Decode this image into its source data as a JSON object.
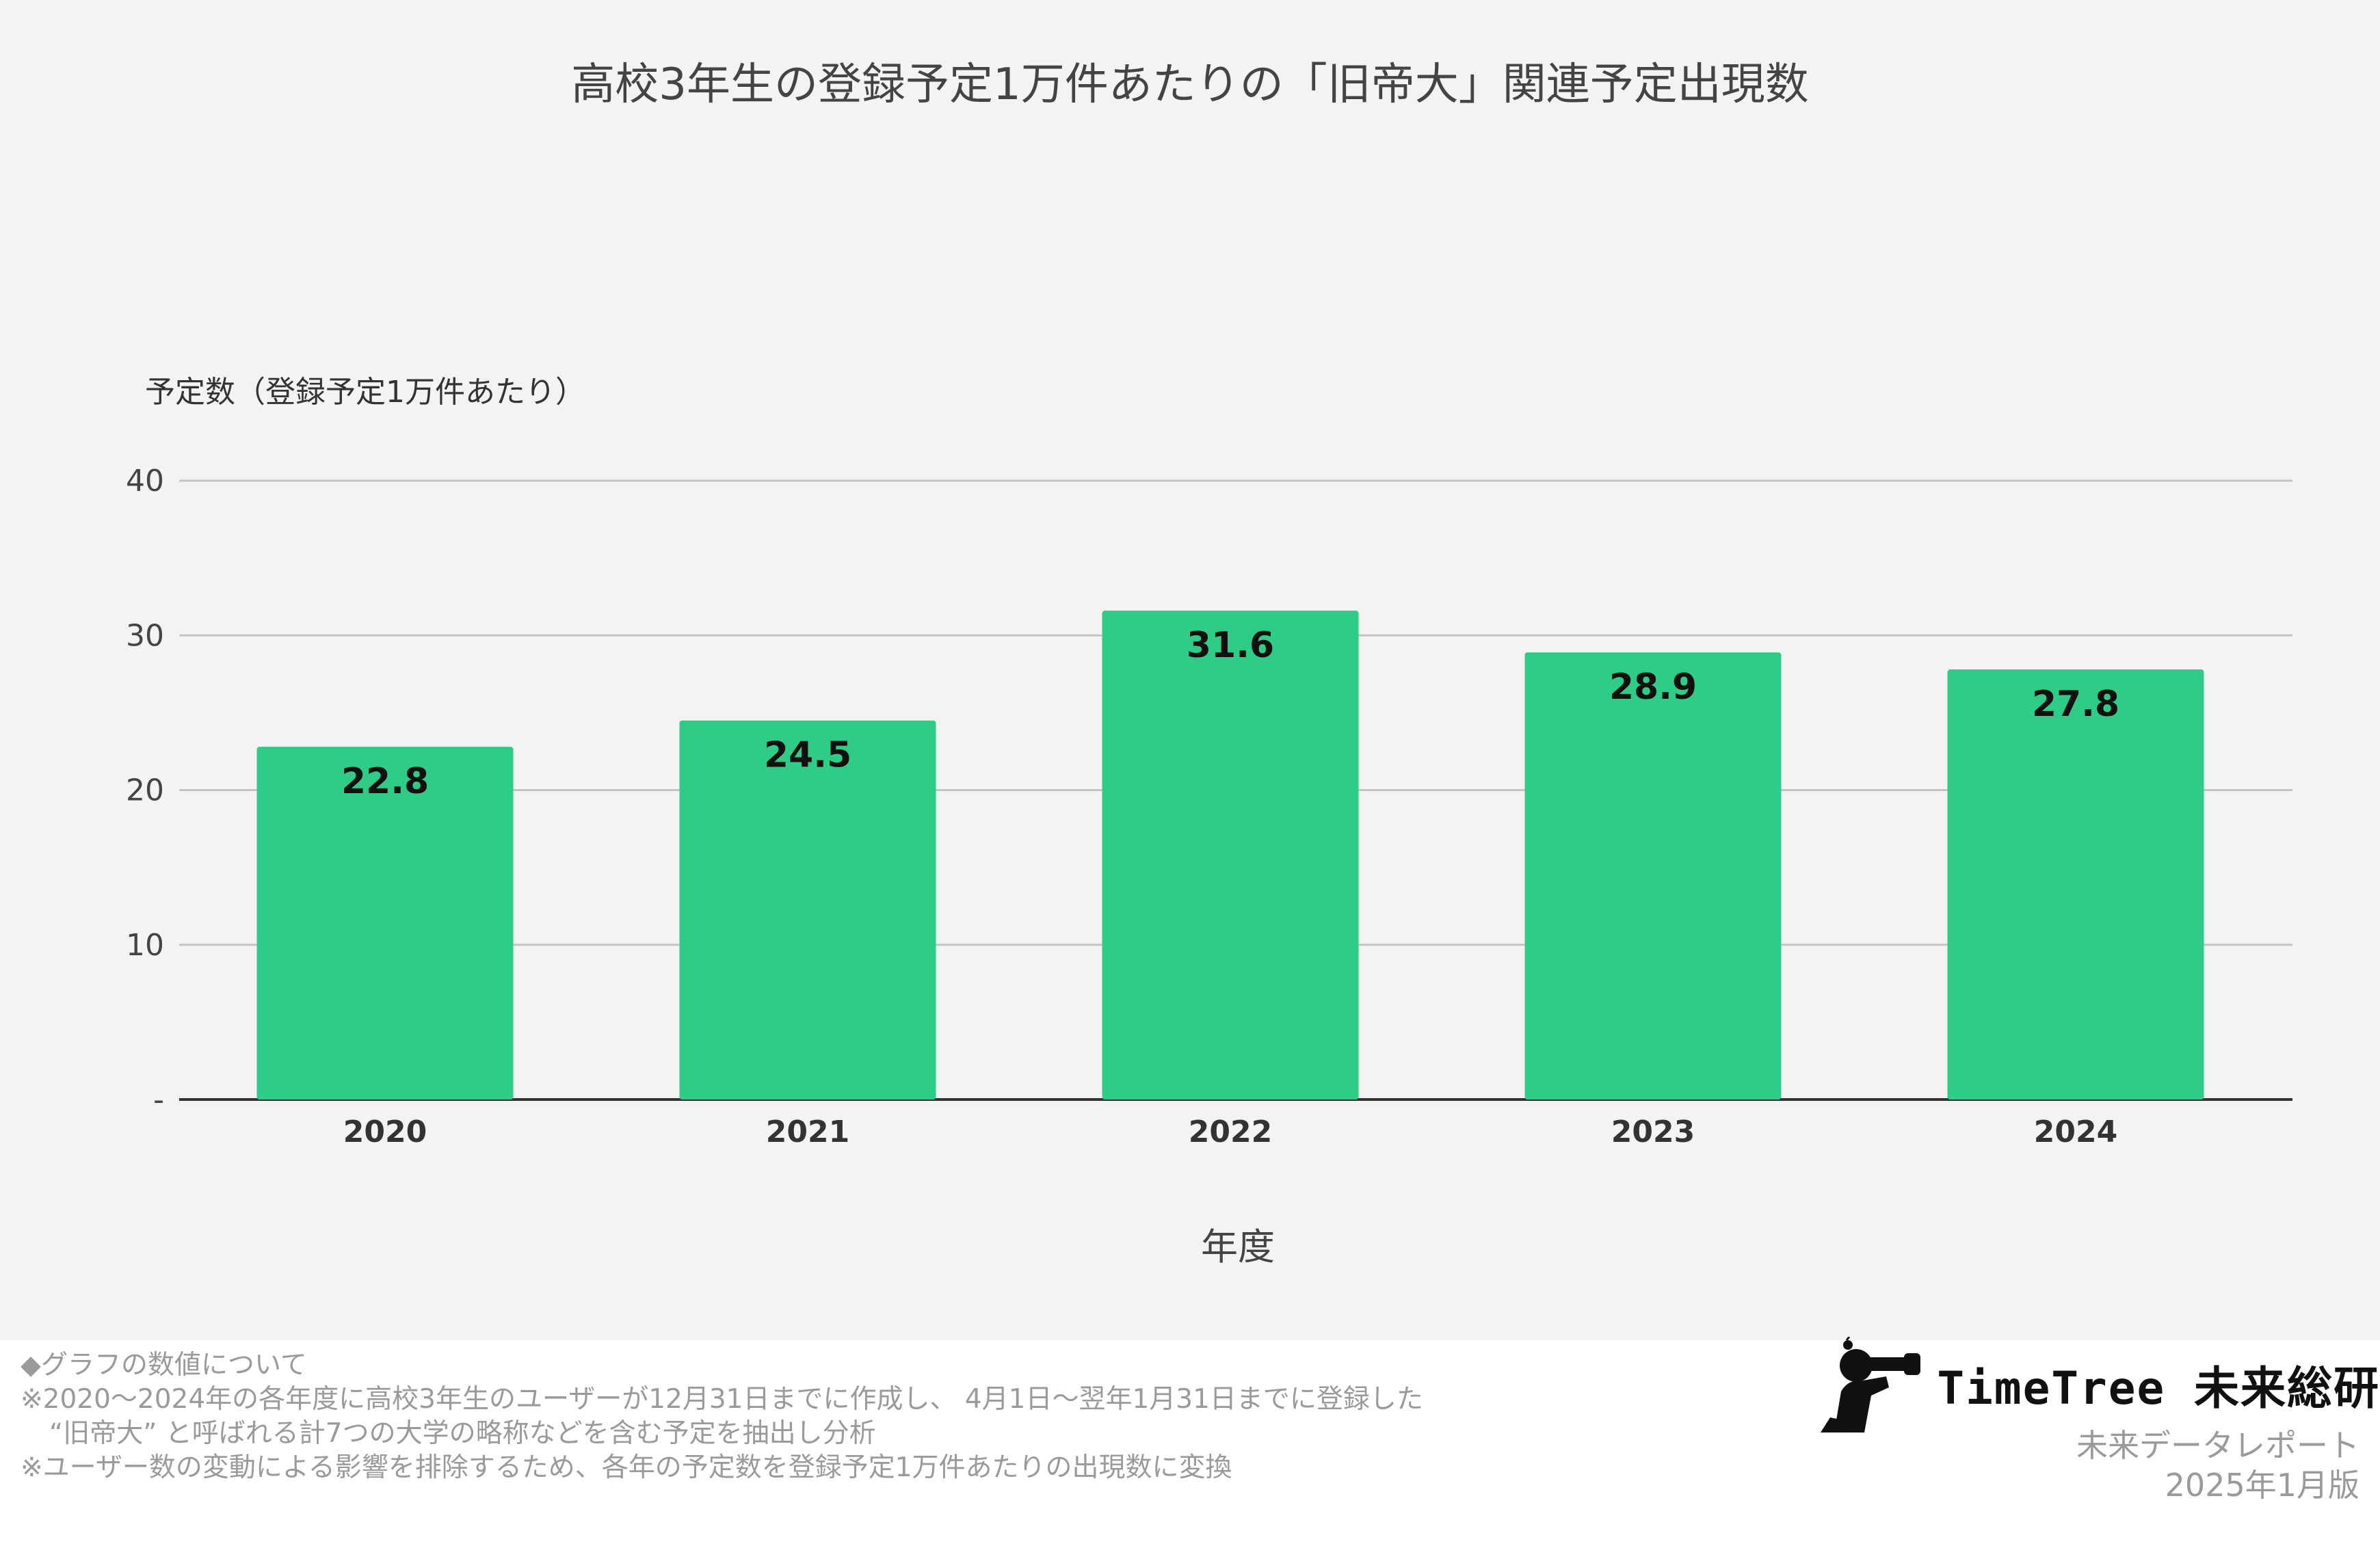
{
  "chart_data": {
    "type": "bar",
    "title": "高校3年生の登録予定1万件あたりの「旧帝大」関連予定出現数",
    "ylabel": "予定数（登録予定1万件あたり）",
    "xlabel": "年度",
    "categories": [
      "2020",
      "2021",
      "2022",
      "2023",
      "2024"
    ],
    "values": [
      22.8,
      24.5,
      31.6,
      28.9,
      27.8
    ],
    "data_labels": [
      "22.8",
      "24.5",
      "31.6",
      "28.9",
      "27.8"
    ],
    "ylim": [
      0,
      40
    ],
    "yticks": [
      0,
      10,
      20,
      30,
      40
    ],
    "ytick_labels": [
      "-",
      "10",
      "20",
      "30",
      "40"
    ],
    "grid": true,
    "bar_color": "#2ecc87"
  },
  "footnotes": {
    "heading": "◆グラフの数値について",
    "line1": "※2020～2024年の各年度に高校3年生のユーザーが12月31日までに作成し、 4月1日～翌年1月31日までに登録した",
    "line2": "“旧帝大” と呼ばれる計7つの大学の略称などを含む予定を抽出し分析",
    "line3": "※ユーザー数の変動による影響を排除するため、各年の予定数を登録予定1万件あたりの出現数に変換"
  },
  "brand": {
    "name": "TimeTree 未来総研",
    "report": "未来データレポート",
    "edition": "2025年1月版",
    "icon": "binoculars-person-icon"
  }
}
